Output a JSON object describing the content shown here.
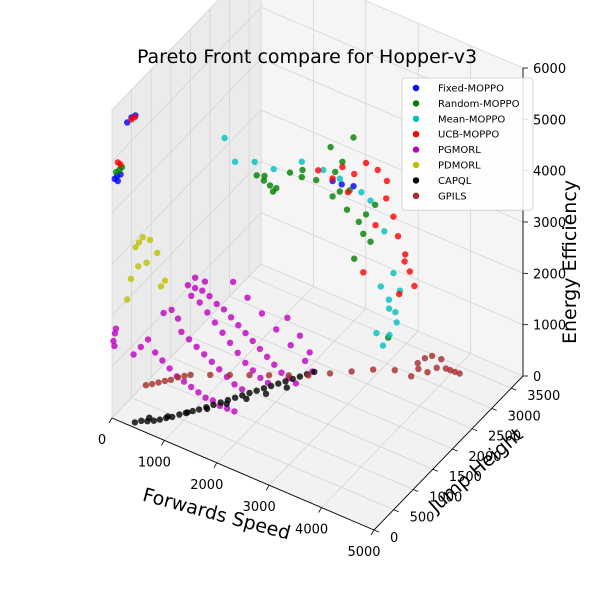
{
  "chart_data": {
    "type": "scatter",
    "title": "Pareto Front compare for Hopper-v3",
    "xlabel": "Forwards Speed",
    "ylabel": "Jump Height",
    "zlabel": "Energy Efficiency",
    "xlim": [
      0,
      5000
    ],
    "ylim": [
      0,
      3800
    ],
    "zlim": [
      0,
      6000
    ],
    "x_ticks": [
      "0",
      "1000",
      "2000",
      "3000",
      "4000",
      "5000"
    ],
    "y_ticks": [
      "0",
      "500",
      "1000",
      "1500",
      "2000",
      "2500",
      "3000",
      "3500"
    ],
    "z_ticks": [
      "0",
      "1000",
      "2000",
      "3000",
      "4000",
      "5000",
      "6000"
    ],
    "grid": true,
    "legend_position": "top-right",
    "series": [
      {
        "name": "Fixed-MOPPO",
        "color": "#0000ff",
        "points": [
          [
            30,
            30,
            4650
          ],
          [
            60,
            50,
            4700
          ],
          [
            80,
            40,
            4620
          ],
          [
            120,
            60,
            4750
          ],
          [
            200,
            120,
            5750
          ],
          [
            260,
            150,
            5850
          ],
          [
            320,
            170,
            5900
          ],
          [
            2900,
            1750,
            4500
          ],
          [
            3000,
            1850,
            4400
          ],
          [
            3150,
            1950,
            4350
          ]
        ]
      },
      {
        "name": "Random-MOPPO",
        "color": "#008000",
        "points": [
          [
            50,
            40,
            4780
          ],
          [
            90,
            70,
            4820
          ],
          [
            130,
            80,
            4880
          ],
          [
            1900,
            1150,
            4650
          ],
          [
            2000,
            1200,
            4550
          ],
          [
            2080,
            1250,
            4450
          ],
          [
            2100,
            1300,
            4300
          ],
          [
            2500,
            1500,
            4600
          ],
          [
            2700,
            1600,
            4550
          ],
          [
            2900,
            1750,
            4200
          ],
          [
            3100,
            1850,
            3950
          ],
          [
            3250,
            1950,
            3700
          ],
          [
            3300,
            2000,
            3450
          ],
          [
            3400,
            2050,
            3300
          ],
          [
            3050,
            1800,
            4900
          ],
          [
            2900,
            1700,
            5200
          ],
          [
            3200,
            1900,
            3000
          ],
          [
            2950,
            1750,
            4700
          ],
          [
            3350,
            2000,
            3850
          ],
          [
            3000,
            1800,
            4300
          ],
          [
            2550,
            1450,
            4800
          ],
          [
            2350,
            1400,
            4700
          ],
          [
            3450,
            2100,
            4000
          ],
          [
            3150,
            1850,
            4350
          ],
          [
            3150,
            1950,
            5300
          ],
          [
            3550,
            2300,
            1300
          ],
          [
            2050,
            1150,
            4700
          ],
          [
            2200,
            1250,
            4450
          ]
        ]
      },
      {
        "name": "Mean-MOPPO",
        "color": "#00bfbf",
        "points": [
          [
            1600,
            1000,
            4900
          ],
          [
            1900,
            1100,
            4950
          ],
          [
            2150,
            1250,
            4800
          ],
          [
            2500,
            1500,
            4900
          ],
          [
            2800,
            1650,
            4750
          ],
          [
            3000,
            1800,
            4550
          ],
          [
            3300,
            1950,
            4300
          ],
          [
            3400,
            2050,
            4100
          ],
          [
            3550,
            2200,
            3450
          ],
          [
            3650,
            2300,
            2600
          ],
          [
            3700,
            2400,
            2200
          ],
          [
            3600,
            2450,
            1500
          ],
          [
            3500,
            2400,
            1250
          ],
          [
            3450,
            2300,
            1100
          ],
          [
            3650,
            2350,
            1800
          ],
          [
            3600,
            2250,
            2100
          ],
          [
            1550,
            800,
            5500
          ],
          [
            3520,
            2150,
            2400
          ],
          [
            3620,
            2230,
            1950
          ],
          [
            3400,
            2200,
            1400
          ]
        ]
      },
      {
        "name": "UCB-MOPPO",
        "color": "#ff0000",
        "points": [
          [
            60,
            70,
            4950
          ],
          [
            100,
            80,
            4920
          ],
          [
            250,
            160,
            5800
          ],
          [
            300,
            180,
            5850
          ],
          [
            2700,
            1650,
            4700
          ],
          [
            2900,
            1750,
            4550
          ],
          [
            3050,
            1800,
            4800
          ],
          [
            3200,
            1900,
            4650
          ],
          [
            3350,
            2000,
            4850
          ],
          [
            3500,
            2100,
            4700
          ],
          [
            3600,
            2200,
            4450
          ],
          [
            3550,
            2250,
            4050
          ],
          [
            3650,
            2300,
            3700
          ],
          [
            3700,
            2350,
            3300
          ],
          [
            3800,
            2400,
            2950
          ],
          [
            3850,
            2450,
            2600
          ],
          [
            3900,
            2500,
            2300
          ],
          [
            3700,
            2380,
            2150
          ],
          [
            3300,
            2000,
            2700
          ],
          [
            3120,
            1850,
            4300
          ],
          [
            3420,
            2150,
            3550
          ],
          [
            3750,
            2450,
            2750
          ]
        ]
      },
      {
        "name": "PGMORL",
        "color": "#bf00bf",
        "points": [
          [
            20,
            10,
            1500
          ],
          [
            40,
            20,
            1650
          ],
          [
            60,
            20,
            1750
          ],
          [
            30,
            20,
            1400
          ],
          [
            300,
            150,
            1250
          ],
          [
            400,
            200,
            1400
          ],
          [
            500,
            250,
            1550
          ],
          [
            600,
            300,
            1300
          ],
          [
            700,
            350,
            1150
          ],
          [
            800,
            400,
            1000
          ],
          [
            900,
            450,
            850
          ],
          [
            1000,
            500,
            750
          ],
          [
            1100,
            550,
            650
          ],
          [
            1200,
            600,
            550
          ],
          [
            1300,
            650,
            450
          ],
          [
            1400,
            700,
            400
          ],
          [
            1500,
            750,
            300
          ],
          [
            1600,
            800,
            250
          ],
          [
            1700,
            850,
            200
          ],
          [
            1000,
            600,
            2550
          ],
          [
            1100,
            650,
            2500
          ],
          [
            1200,
            700,
            2450
          ],
          [
            1300,
            750,
            2350
          ],
          [
            1400,
            800,
            2200
          ],
          [
            1500,
            850,
            2100
          ],
          [
            1600,
            900,
            1950
          ],
          [
            1700,
            950,
            1800
          ],
          [
            1800,
            1000,
            1650
          ],
          [
            1900,
            1050,
            1500
          ],
          [
            2000,
            1100,
            1350
          ],
          [
            2100,
            1150,
            1200
          ],
          [
            2200,
            1200,
            1050
          ],
          [
            2300,
            1250,
            900
          ],
          [
            2400,
            1300,
            800
          ],
          [
            2500,
            1350,
            700
          ],
          [
            1050,
            620,
            2350
          ],
          [
            1150,
            700,
            2200
          ],
          [
            1250,
            760,
            2000
          ],
          [
            1350,
            820,
            1800
          ],
          [
            1450,
            880,
            1600
          ],
          [
            1550,
            940,
            1400
          ],
          [
            1650,
            1000,
            1200
          ],
          [
            1750,
            1060,
            1000
          ],
          [
            1850,
            1120,
            850
          ],
          [
            1950,
            1180,
            700
          ],
          [
            2050,
            1240,
            600
          ],
          [
            950,
            500,
            1700
          ],
          [
            1050,
            560,
            1550
          ],
          [
            1150,
            620,
            1400
          ],
          [
            1250,
            680,
            1250
          ],
          [
            1350,
            740,
            1100
          ],
          [
            1450,
            800,
            950
          ],
          [
            1550,
            860,
            800
          ],
          [
            1650,
            920,
            650
          ],
          [
            1750,
            980,
            550
          ],
          [
            800,
            450,
            2100
          ],
          [
            900,
            480,
            1950
          ],
          [
            700,
            380,
            2050
          ],
          [
            1600,
            950,
            2600
          ],
          [
            1800,
            1050,
            2300
          ],
          [
            2000,
            1150,
            2000
          ],
          [
            2200,
            1250,
            1700
          ],
          [
            2400,
            1350,
            1400
          ],
          [
            2600,
            1450,
            1100
          ],
          [
            2700,
            1500,
            900
          ],
          [
            2650,
            1500,
            1250
          ],
          [
            2500,
            1450,
            1550
          ],
          [
            2300,
            1400,
            1850
          ],
          [
            1100,
            650,
            2700
          ],
          [
            1250,
            700,
            2650
          ]
        ]
      },
      {
        "name": "PDMORL",
        "color": "#bfbf00",
        "points": [
          [
            300,
            200,
            3300
          ],
          [
            350,
            220,
            3400
          ],
          [
            400,
            250,
            3500
          ],
          [
            450,
            280,
            3000
          ],
          [
            250,
            150,
            2700
          ],
          [
            500,
            300,
            3450
          ],
          [
            350,
            200,
            2950
          ],
          [
            600,
            350,
            3200
          ],
          [
            200,
            120,
            2300
          ],
          [
            700,
            420,
            2650
          ],
          [
            650,
            380,
            2550
          ]
        ]
      },
      {
        "name": "CAPQL",
        "color": "#000000",
        "points": [
          [
            400,
            50,
            50
          ],
          [
            500,
            80,
            100
          ],
          [
            600,
            100,
            120
          ],
          [
            700,
            130,
            150
          ],
          [
            800,
            150,
            200
          ],
          [
            900,
            180,
            250
          ],
          [
            1000,
            200,
            300
          ],
          [
            1100,
            250,
            350
          ],
          [
            1200,
            280,
            400
          ],
          [
            1300,
            320,
            450
          ],
          [
            1400,
            350,
            500
          ],
          [
            1500,
            400,
            550
          ],
          [
            1600,
            450,
            600
          ],
          [
            1700,
            500,
            650
          ],
          [
            1800,
            550,
            700
          ],
          [
            1900,
            600,
            750
          ],
          [
            2000,
            650,
            800
          ],
          [
            2100,
            700,
            850
          ],
          [
            2200,
            750,
            900
          ],
          [
            2300,
            800,
            950
          ],
          [
            2400,
            850,
            1000
          ],
          [
            2500,
            900,
            1050
          ],
          [
            2600,
            950,
            1100
          ],
          [
            2700,
            1000,
            1150
          ],
          [
            2800,
            1050,
            1200
          ],
          [
            2900,
            1100,
            1250
          ],
          [
            3000,
            1150,
            1300
          ],
          [
            600,
            150,
            150
          ],
          [
            900,
            220,
            250
          ],
          [
            1200,
            320,
            380
          ],
          [
            1500,
            420,
            500
          ],
          [
            1800,
            520,
            650
          ],
          [
            2100,
            620,
            800
          ],
          [
            2400,
            720,
            950
          ],
          [
            2700,
            850,
            1100
          ]
        ]
      },
      {
        "name": "GPILS",
        "color": "#a52a2a",
        "points": [
          [
            500,
            200,
            700
          ],
          [
            600,
            220,
            750
          ],
          [
            700,
            250,
            800
          ],
          [
            800,
            280,
            850
          ],
          [
            900,
            300,
            900
          ],
          [
            1000,
            350,
            950
          ],
          [
            1100,
            380,
            1000
          ],
          [
            1200,
            400,
            1050
          ],
          [
            1500,
            500,
            1100
          ],
          [
            1800,
            600,
            1150
          ],
          [
            2100,
            700,
            1200
          ],
          [
            2400,
            800,
            1250
          ],
          [
            2700,
            900,
            1300
          ],
          [
            3000,
            1000,
            1350
          ],
          [
            3300,
            1150,
            1400
          ],
          [
            3600,
            1300,
            1450
          ],
          [
            3900,
            1450,
            1500
          ],
          [
            4200,
            1600,
            1500
          ],
          [
            4500,
            1800,
            1500
          ],
          [
            4700,
            2000,
            1450
          ],
          [
            4800,
            2100,
            1400
          ],
          [
            4850,
            2150,
            1350
          ],
          [
            4900,
            2200,
            1300
          ],
          [
            4750,
            2050,
            1600
          ],
          [
            4650,
            1950,
            1700
          ],
          [
            4550,
            1900,
            1650
          ],
          [
            4450,
            1850,
            1550
          ],
          [
            4950,
            2250,
            1250
          ],
          [
            4600,
            1900,
            1400
          ],
          [
            4400,
            1750,
            1350
          ]
        ]
      }
    ]
  }
}
